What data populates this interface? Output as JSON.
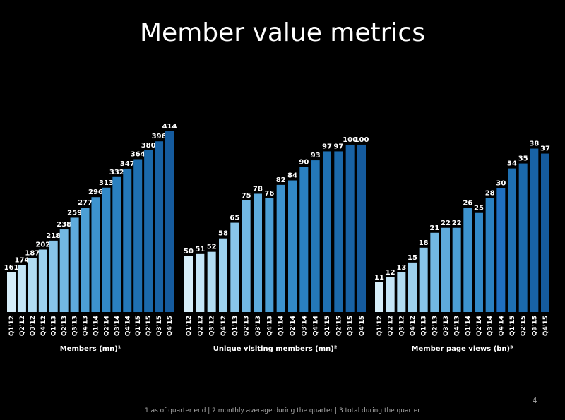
{
  "slide": {
    "title": "Member value metrics",
    "page": "4",
    "footnote": "1 as of quarter end | 2 monthly average during the quarter | 3 total during the quarter"
  },
  "chart_data": [
    {
      "type": "bar",
      "x_label": "Members (mn)¹",
      "categories": [
        "Q1'12",
        "Q2'12",
        "Q3'12",
        "Q4'12",
        "Q1'13",
        "Q2'13",
        "Q3'13",
        "Q4'13",
        "Q1'14",
        "Q2'14",
        "Q3'14",
        "Q4'14",
        "Q1'15",
        "Q2'15",
        "Q3'15",
        "Q4'15"
      ],
      "values": [
        161,
        174,
        187,
        202,
        218,
        238,
        259,
        277,
        296,
        313,
        332,
        347,
        364,
        380,
        396,
        414
      ],
      "colors": [
        "#d6eef9",
        "#c4e5f6",
        "#b1dcf2",
        "#9dd1ee",
        "#88c5e9",
        "#72b8e3",
        "#5eabdc",
        "#4c9fd5",
        "#3d93ce",
        "#3289c7",
        "#2a80c0",
        "#2478b9",
        "#1f70b2",
        "#1b69ab",
        "#1862a5",
        "#155b9e"
      ],
      "ylim": [
        90,
        414
      ]
    },
    {
      "type": "bar",
      "x_label": "Unique visiting members (mn)²",
      "categories": [
        "Q1'12",
        "Q2'12",
        "Q3'12",
        "Q4'12",
        "Q1'13",
        "Q2'13",
        "Q3'13",
        "Q4'13",
        "Q1'14",
        "Q2'14",
        "Q3'14",
        "Q4'14",
        "Q1'15",
        "Q2'15",
        "Q3'15",
        "Q4'15"
      ],
      "values": [
        50,
        51,
        52,
        58,
        65,
        75,
        78,
        76,
        82,
        84,
        90,
        93,
        97,
        97,
        100,
        100
      ],
      "colors": [
        "#d6eef9",
        "#c4e5f6",
        "#b1dcf2",
        "#9dd1ee",
        "#88c5e9",
        "#72b8e3",
        "#5eabdc",
        "#4c9fd5",
        "#3d93ce",
        "#3289c7",
        "#2a80c0",
        "#2478b9",
        "#1f70b2",
        "#1b69ab",
        "#1862a5",
        "#155b9e"
      ],
      "ylim": [
        25,
        106
      ]
    },
    {
      "type": "bar",
      "x_label": "Member page views (bn)³",
      "categories": [
        "Q1'12",
        "Q2'12",
        "Q3'12",
        "Q4'12",
        "Q1'13",
        "Q2'13",
        "Q3'13",
        "Q4'13",
        "Q1'14",
        "Q2'14",
        "Q3'14",
        "Q4'14",
        "Q1'15",
        "Q2'15",
        "Q3'15",
        "Q4'15"
      ],
      "values": [
        11,
        12,
        13,
        15,
        18,
        21,
        22,
        22,
        26,
        25,
        28,
        30,
        34,
        35,
        38,
        37
      ],
      "colors": [
        "#d6eef9",
        "#c4e5f6",
        "#b1dcf2",
        "#9dd1ee",
        "#88c5e9",
        "#72b8e3",
        "#5eabdc",
        "#4c9fd5",
        "#3d93ce",
        "#3289c7",
        "#2a80c0",
        "#1f6fc0",
        "#1f70b2",
        "#1b69ab",
        "#1862a5",
        "#155b9e"
      ],
      "ylim": [
        5,
        41.5
      ]
    }
  ]
}
